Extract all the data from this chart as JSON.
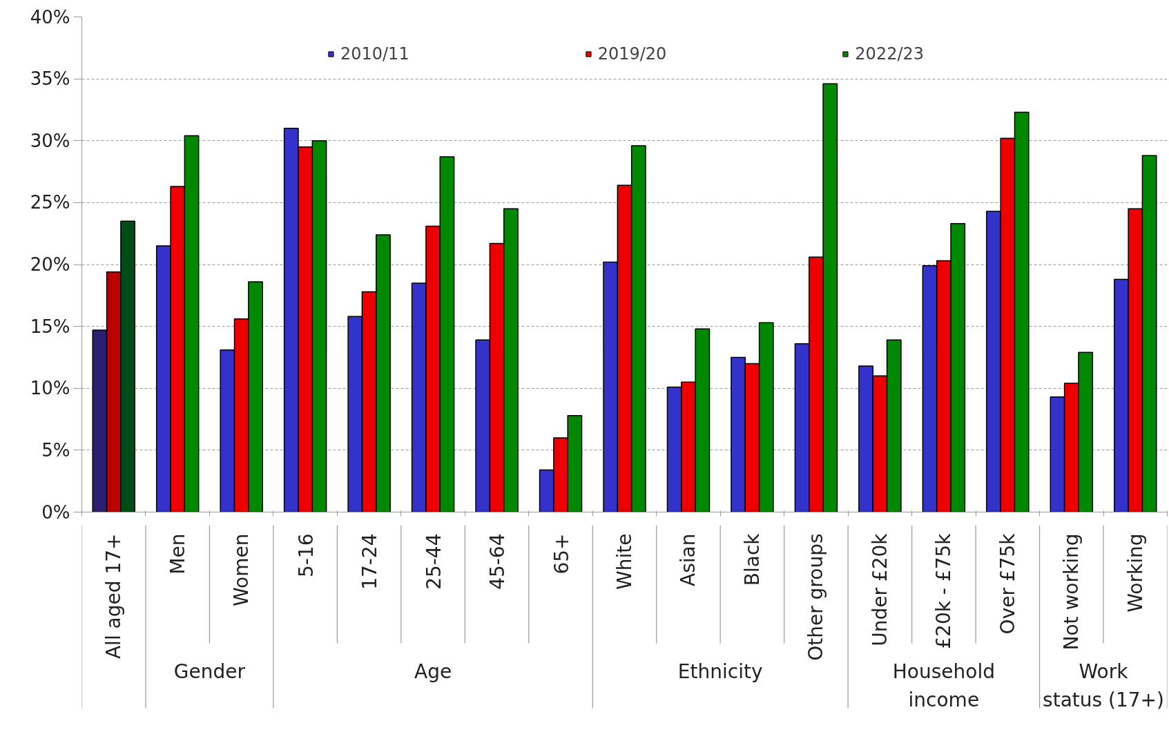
{
  "chart_data": {
    "type": "bar",
    "categories": [
      "All aged 17+",
      "Men",
      "Women",
      "5-16",
      "17-24",
      "25-44",
      "45-64",
      "65+",
      "White",
      "Asian",
      "Black",
      "Other groups",
      "Under £20k",
      "£20k - £75k",
      "Over £75k",
      "Not working",
      "Working"
    ],
    "series": [
      {
        "name": "2010/11",
        "color": "#3333cc",
        "colors": [
          "#2b1f73",
          "#3333cc",
          "#3333cc",
          "#3333cc",
          "#3333cc",
          "#3333cc",
          "#3333cc",
          "#3333cc",
          "#3333cc",
          "#3333cc",
          "#3333cc",
          "#3333cc",
          "#3333cc",
          "#3333cc",
          "#3333cc",
          "#3333cc",
          "#3333cc"
        ],
        "values": [
          14.7,
          21.5,
          13.1,
          31.0,
          15.8,
          18.5,
          13.9,
          3.4,
          20.2,
          10.1,
          12.5,
          13.6,
          11.8,
          19.9,
          24.3,
          9.3,
          18.8
        ]
      },
      {
        "name": "2019/20",
        "color": "#ee0000",
        "colors": [
          "#bb0000",
          "#ee0000",
          "#ee0000",
          "#ee0000",
          "#ee0000",
          "#ee0000",
          "#ee0000",
          "#ee0000",
          "#ee0000",
          "#ee0000",
          "#ee0000",
          "#ee0000",
          "#ee0000",
          "#ee0000",
          "#ee0000",
          "#ee0000",
          "#ee0000"
        ],
        "values": [
          19.4,
          26.3,
          15.6,
          29.5,
          17.8,
          23.1,
          21.7,
          6.0,
          26.4,
          10.5,
          12.0,
          20.6,
          11.0,
          20.3,
          30.2,
          10.4,
          24.5
        ]
      },
      {
        "name": "2022/23",
        "color": "#008800",
        "colors": [
          "#004d19",
          "#008800",
          "#008800",
          "#008800",
          "#008800",
          "#008800",
          "#008800",
          "#008800",
          "#008800",
          "#008800",
          "#008800",
          "#008800",
          "#008800",
          "#008800",
          "#008800",
          "#008800",
          "#008800"
        ],
        "values": [
          23.5,
          30.4,
          18.6,
          30.0,
          22.4,
          28.7,
          24.5,
          7.8,
          29.6,
          14.8,
          15.3,
          34.6,
          13.9,
          23.3,
          32.3,
          12.9,
          28.8
        ]
      }
    ],
    "ylim": [
      0,
      40
    ],
    "yticks": [
      {
        "value": 0,
        "label": "0%"
      },
      {
        "value": 5,
        "label": "5%"
      },
      {
        "value": 10,
        "label": "10%"
      },
      {
        "value": 15,
        "label": "15%"
      },
      {
        "value": 20,
        "label": "20%"
      },
      {
        "value": 25,
        "label": "25%"
      },
      {
        "value": 30,
        "label": "30%"
      },
      {
        "value": 35,
        "label": "35%"
      },
      {
        "value": 40,
        "label": "40%"
      }
    ],
    "grid": "y",
    "legend": "top",
    "annotations": [
      "Gender",
      "Age",
      "Ethnicity",
      "Household income",
      "Work status (17+)"
    ]
  }
}
